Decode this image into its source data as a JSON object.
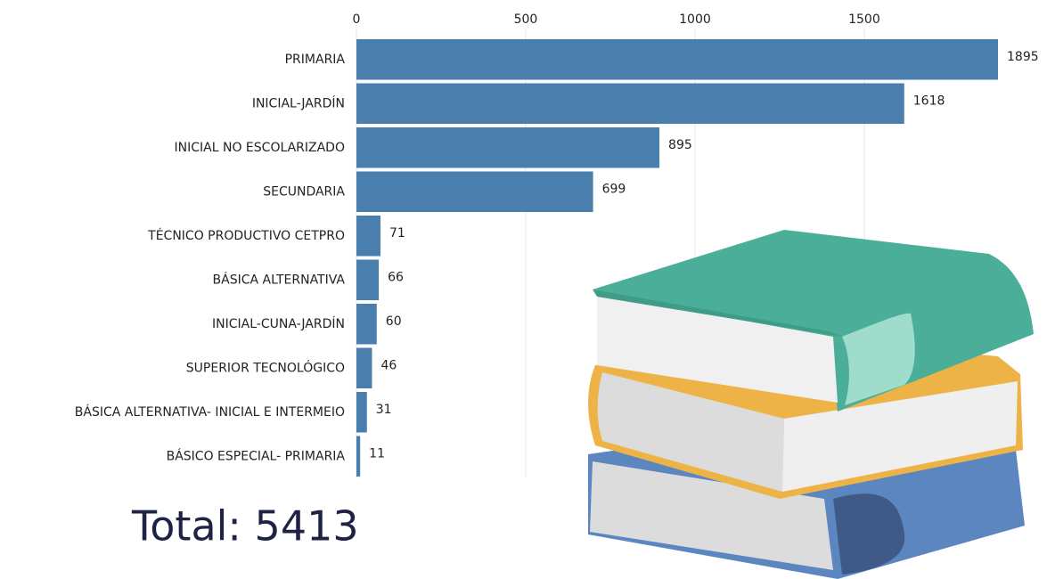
{
  "chart_data": {
    "type": "bar",
    "orientation": "horizontal",
    "categories": [
      "PRIMARIA",
      "INICIAL-JARDÍN",
      "INICIAL NO ESCOLARIZADO",
      "SECUNDARIA",
      "TÉCNICO PRODUCTIVO CETPRO",
      "BÁSICA ALTERNATIVA",
      "INICIAL-CUNA-JARDÍN",
      "SUPERIOR TECNOLÓGICO",
      "BÁSICA ALTERNATIVA- INICIAL E INTERMEIO",
      "BÁSICO ESPECIAL- PRIMARIA"
    ],
    "values": [
      1895,
      1618,
      895,
      699,
      71,
      66,
      60,
      46,
      31,
      11
    ],
    "color": "#4a7fad",
    "xlim": [
      0,
      1895
    ],
    "xticks": [
      0,
      500,
      1000,
      1500
    ],
    "grid": true,
    "annotation": "Total: 5413"
  }
}
